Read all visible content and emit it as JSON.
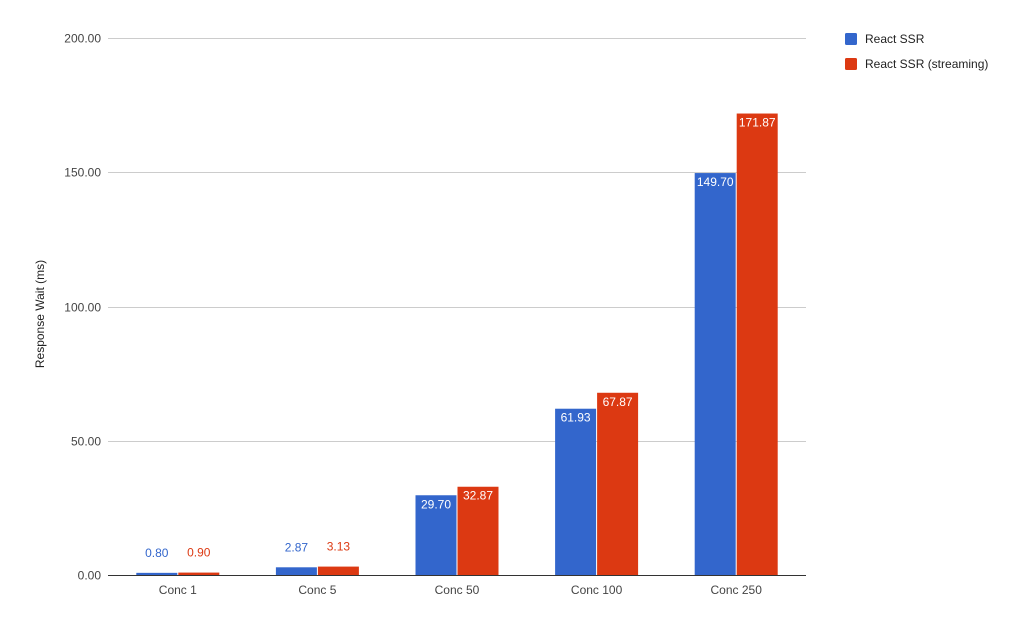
{
  "chart_data": {
    "type": "bar",
    "title": "",
    "xlabel": "",
    "ylabel": "Response Wait (ms)",
    "categories": [
      "Conc 1",
      "Conc 5",
      "Conc 50",
      "Conc 100",
      "Conc 250"
    ],
    "series": [
      {
        "name": "React SSR",
        "color": "#3366cc",
        "values": [
          0.8,
          2.87,
          29.7,
          61.93,
          149.7
        ],
        "labels": [
          "0.80",
          "2.87",
          "29.70",
          "61.93",
          "149.70"
        ]
      },
      {
        "name": "React SSR (streaming)",
        "color": "#dc3912",
        "values": [
          0.9,
          3.13,
          32.87,
          67.87,
          171.87
        ],
        "labels": [
          "0.90",
          "3.13",
          "32.87",
          "67.87",
          "171.87"
        ]
      }
    ],
    "yticks": [
      "0.00",
      "50.00",
      "100.00",
      "150.00",
      "200.00"
    ],
    "ylim": [
      0,
      200
    ],
    "grid": true,
    "legend_position": "right"
  }
}
